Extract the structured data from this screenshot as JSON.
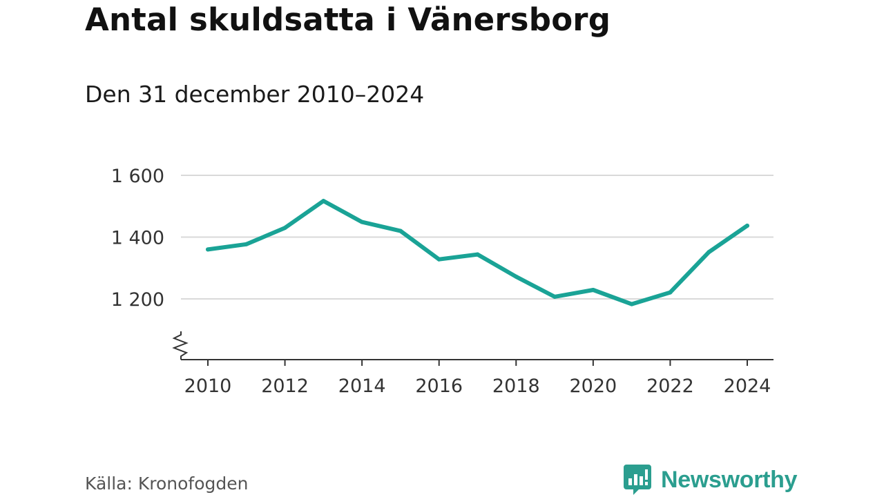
{
  "chart_data": {
    "type": "line",
    "title": "Antal skuldsatta i Vänersborg",
    "subtitle": "Den 31 december 2010–2024",
    "xlabel": "",
    "ylabel": "",
    "x": [
      2010,
      2011,
      2012,
      2013,
      2014,
      2015,
      2016,
      2017,
      2018,
      2019,
      2020,
      2021,
      2022,
      2023,
      2024
    ],
    "series": [
      {
        "name": "Antal skuldsatta",
        "values": [
          1360,
          1377,
          1430,
          1517,
          1449,
          1420,
          1328,
          1344,
          1272,
          1207,
          1229,
          1183,
          1221,
          1351,
          1437
        ]
      }
    ],
    "ylim": [
      1050,
      1600
    ],
    "yticks": [
      1200,
      1400,
      1600
    ],
    "ytick_labels": [
      "1 200",
      "1 400",
      "1 600"
    ],
    "xticks": [
      2010,
      2012,
      2014,
      2016,
      2018,
      2020,
      2022,
      2024
    ],
    "xtick_labels": [
      "2010",
      "2012",
      "2014",
      "2016",
      "2018",
      "2020",
      "2022",
      "2024"
    ],
    "grid": true,
    "axis_break": true,
    "line_color": "#1aa396"
  },
  "footer": {
    "source": "Källa: Kronofogden",
    "brand": "Newsworthy",
    "brand_color": "#2b9e8f",
    "brand_icon": "newsworthy-chart-icon"
  }
}
